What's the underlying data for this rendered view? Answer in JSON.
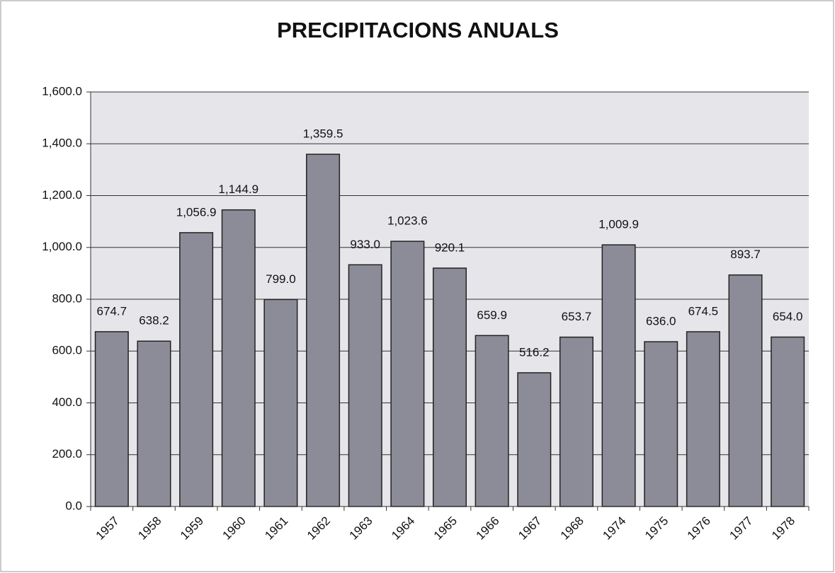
{
  "chart_data": {
    "type": "bar",
    "title": "PRECIPITACIONS ANUALS",
    "categories": [
      "1957",
      "1958",
      "1959",
      "1960",
      "1961",
      "1962",
      "1963",
      "1964",
      "1965",
      "1966",
      "1967",
      "1968",
      "1974",
      "1975",
      "1976",
      "1977",
      "1978"
    ],
    "values": [
      674.7,
      638.2,
      1056.9,
      1144.9,
      799.0,
      1359.5,
      933.0,
      1023.6,
      920.1,
      659.9,
      516.2,
      653.7,
      1009.9,
      636.0,
      674.5,
      893.7,
      654.0
    ],
    "value_labels": [
      "674.7",
      "638.2",
      "1,056.9",
      "1,144.9",
      "799.0",
      "1,359.5",
      "933.0",
      "1,023.6",
      "920.1",
      "659.9",
      "516.2",
      "653.7",
      "1,009.9",
      "636.0",
      "674.5",
      "893.7",
      "654.0"
    ],
    "color": "#8c8c98",
    "ylim": [
      0,
      1600
    ],
    "yticks": [
      {
        "value": 0,
        "label": "0.0"
      },
      {
        "value": 200,
        "label": "200.0"
      },
      {
        "value": 400,
        "label": "400.0"
      },
      {
        "value": 600,
        "label": "600.0"
      },
      {
        "value": 800,
        "label": "800.0"
      },
      {
        "value": 1000,
        "label": "1,000.0"
      },
      {
        "value": 1200,
        "label": "1,200.0"
      },
      {
        "value": 1400,
        "label": "1,400.0"
      },
      {
        "value": 1600,
        "label": "1,600.0"
      }
    ],
    "grid": true
  }
}
